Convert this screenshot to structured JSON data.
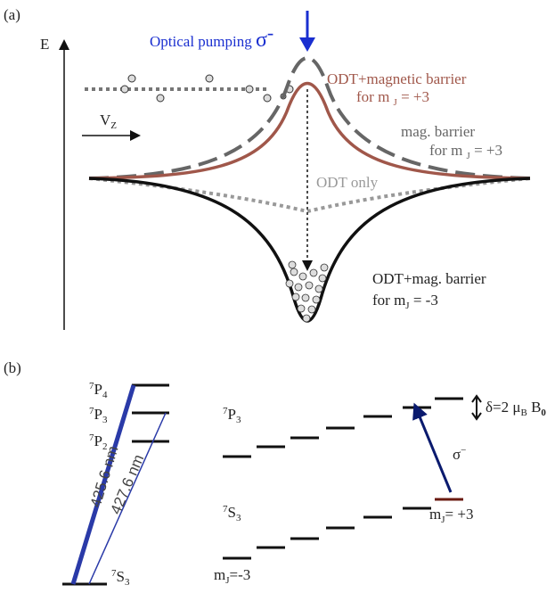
{
  "panel_a": {
    "label": "(a)",
    "axis_label": "E",
    "pumping": {
      "text": "Optical pumping ",
      "symbol": "σ",
      "sup": "-"
    },
    "velocity": {
      "main": "V",
      "sub": "Z"
    },
    "curve_odt_mag_up": {
      "line1": "ODT+magnetic barrier",
      "line2a": "for m ",
      "sub": "J",
      "line2b": " = +3"
    },
    "curve_mag": {
      "line1": "mag. barrier",
      "line2a": "for m ",
      "sub": "J",
      "line2b": " = +3"
    },
    "curve_odt": "ODT only",
    "curve_odt_mag_down": {
      "line1": "ODT+mag. barrier",
      "line2a": "for m",
      "sub": "J",
      "line2b": " = -3"
    }
  },
  "panel_b": {
    "label": "(b)",
    "left_levels": {
      "p4": {
        "sup": "7",
        "main": "P",
        "sub": "4"
      },
      "p3": {
        "sup": "7",
        "main": "P",
        "sub": "3"
      },
      "p2": {
        "sup": "7",
        "main": "P",
        "sub": "2"
      },
      "s3": {
        "sup": "7",
        "main": "S",
        "sub": "3"
      }
    },
    "wavelength_1": "425.6 nm",
    "wavelength_2": "427.6 nm",
    "right_upper": {
      "sup": "7",
      "main": "P",
      "sub": "3"
    },
    "right_lower": {
      "sup": "7",
      "main": "S",
      "sub": "3"
    },
    "splitting": {
      "a": "δ=2 μ",
      "sub1": "B",
      "b": " B",
      "sub2": "0"
    },
    "transition": {
      "main": "σ",
      "sup": "−"
    },
    "mj_plus": {
      "main": "m",
      "sub": "J",
      "rest": "= +3"
    },
    "mj_minus": {
      "main": "m",
      "sub": "J",
      "rest": "=-3"
    }
  }
}
